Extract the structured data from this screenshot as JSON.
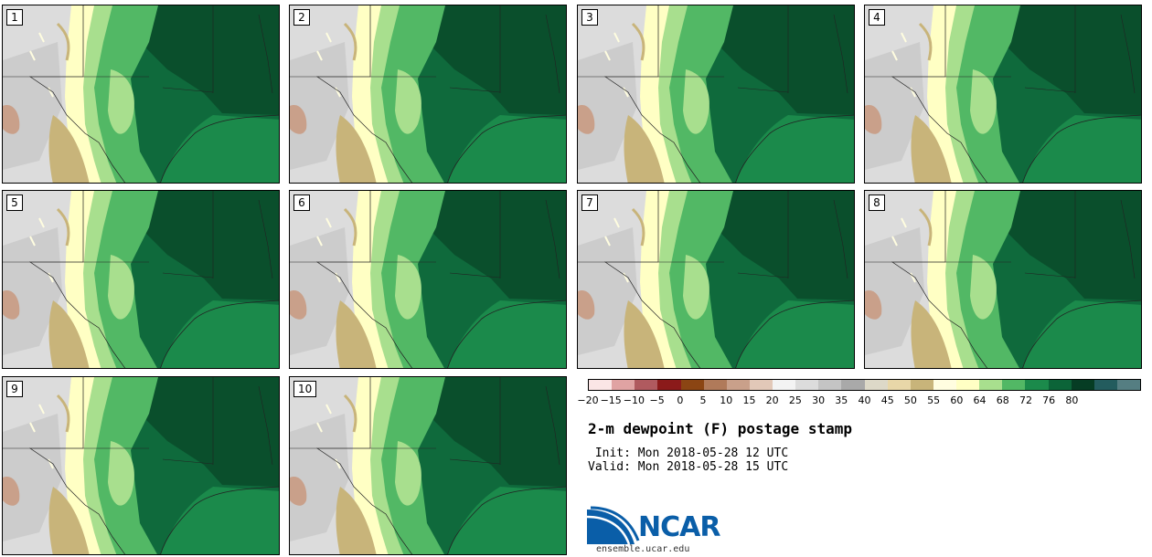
{
  "panels": [
    {
      "label": "1"
    },
    {
      "label": "2"
    },
    {
      "label": "3"
    },
    {
      "label": "4"
    },
    {
      "label": "5"
    },
    {
      "label": "6"
    },
    {
      "label": "7"
    },
    {
      "label": "8"
    },
    {
      "label": "9"
    },
    {
      "label": "10"
    }
  ],
  "colorbar": {
    "colors": [
      "#fbe6e6",
      "#e0a3a3",
      "#b05a5f",
      "#8b1a1a",
      "#8b4513",
      "#b07a5a",
      "#c9a08a",
      "#e2c8b8",
      "#f3f3f3",
      "#dcdcdc",
      "#c4c4c4",
      "#a9a9a9",
      "#ddd9c8",
      "#e8d7a8",
      "#c8b47a",
      "#fffde0",
      "#ffffc4",
      "#a8df8e",
      "#52b865",
      "#1b8a4b",
      "#0c6438",
      "#063d24",
      "#235c5e",
      "#557e82"
    ],
    "ticks": [
      "−20",
      "−15",
      "−10",
      "−5",
      "0",
      "5",
      "10",
      "15",
      "20",
      "25",
      "30",
      "35",
      "40",
      "45",
      "50",
      "55",
      "60",
      "64",
      "68",
      "72",
      "76",
      "80"
    ]
  },
  "title": "2-m dewpoint (F) postage stamp",
  "init": " Init: Mon 2018-05-28 12 UTC",
  "valid": "Valid: Mon 2018-05-28 15 UTC",
  "logo": {
    "text": "NCAR",
    "icon": "ncar-swoosh-logo"
  },
  "site": "ensemble.ucar.edu"
}
